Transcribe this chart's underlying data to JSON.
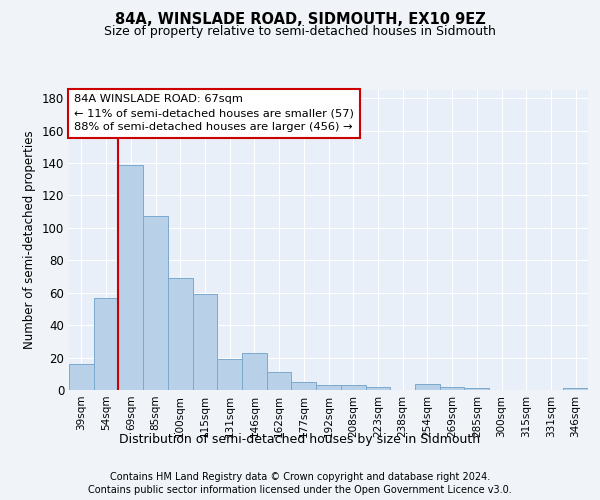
{
  "title": "84A, WINSLADE ROAD, SIDMOUTH, EX10 9EZ",
  "subtitle": "Size of property relative to semi-detached houses in Sidmouth",
  "xlabel": "Distribution of semi-detached houses by size in Sidmouth",
  "ylabel": "Number of semi-detached properties",
  "categories": [
    "39sqm",
    "54sqm",
    "69sqm",
    "85sqm",
    "100sqm",
    "115sqm",
    "131sqm",
    "146sqm",
    "162sqm",
    "177sqm",
    "192sqm",
    "208sqm",
    "223sqm",
    "238sqm",
    "254sqm",
    "269sqm",
    "285sqm",
    "300sqm",
    "315sqm",
    "331sqm",
    "346sqm"
  ],
  "values": [
    16,
    57,
    139,
    107,
    69,
    59,
    19,
    23,
    11,
    5,
    3,
    3,
    2,
    0,
    4,
    2,
    1,
    0,
    0,
    0,
    1
  ],
  "bar_color": "#b8d0e8",
  "bar_edge_color": "#7aaace",
  "red_line_bar_index": 2,
  "red_line_color": "#cc0000",
  "annotation_line1": "84A WINSLADE ROAD: 67sqm",
  "annotation_line2": "← 11% of semi-detached houses are smaller (57)",
  "annotation_line3": "88% of semi-detached houses are larger (456) →",
  "annotation_box_facecolor": "#ffffff",
  "annotation_box_edgecolor": "#cc0000",
  "ylim": [
    0,
    185
  ],
  "yticks": [
    0,
    20,
    40,
    60,
    80,
    100,
    120,
    140,
    160,
    180
  ],
  "footer_line1": "Contains HM Land Registry data © Crown copyright and database right 2024.",
  "footer_line2": "Contains public sector information licensed under the Open Government Licence v3.0.",
  "bg_color": "#f0f4f8",
  "plot_bg_color": "#e8eff8",
  "grid_color": "#ffffff"
}
